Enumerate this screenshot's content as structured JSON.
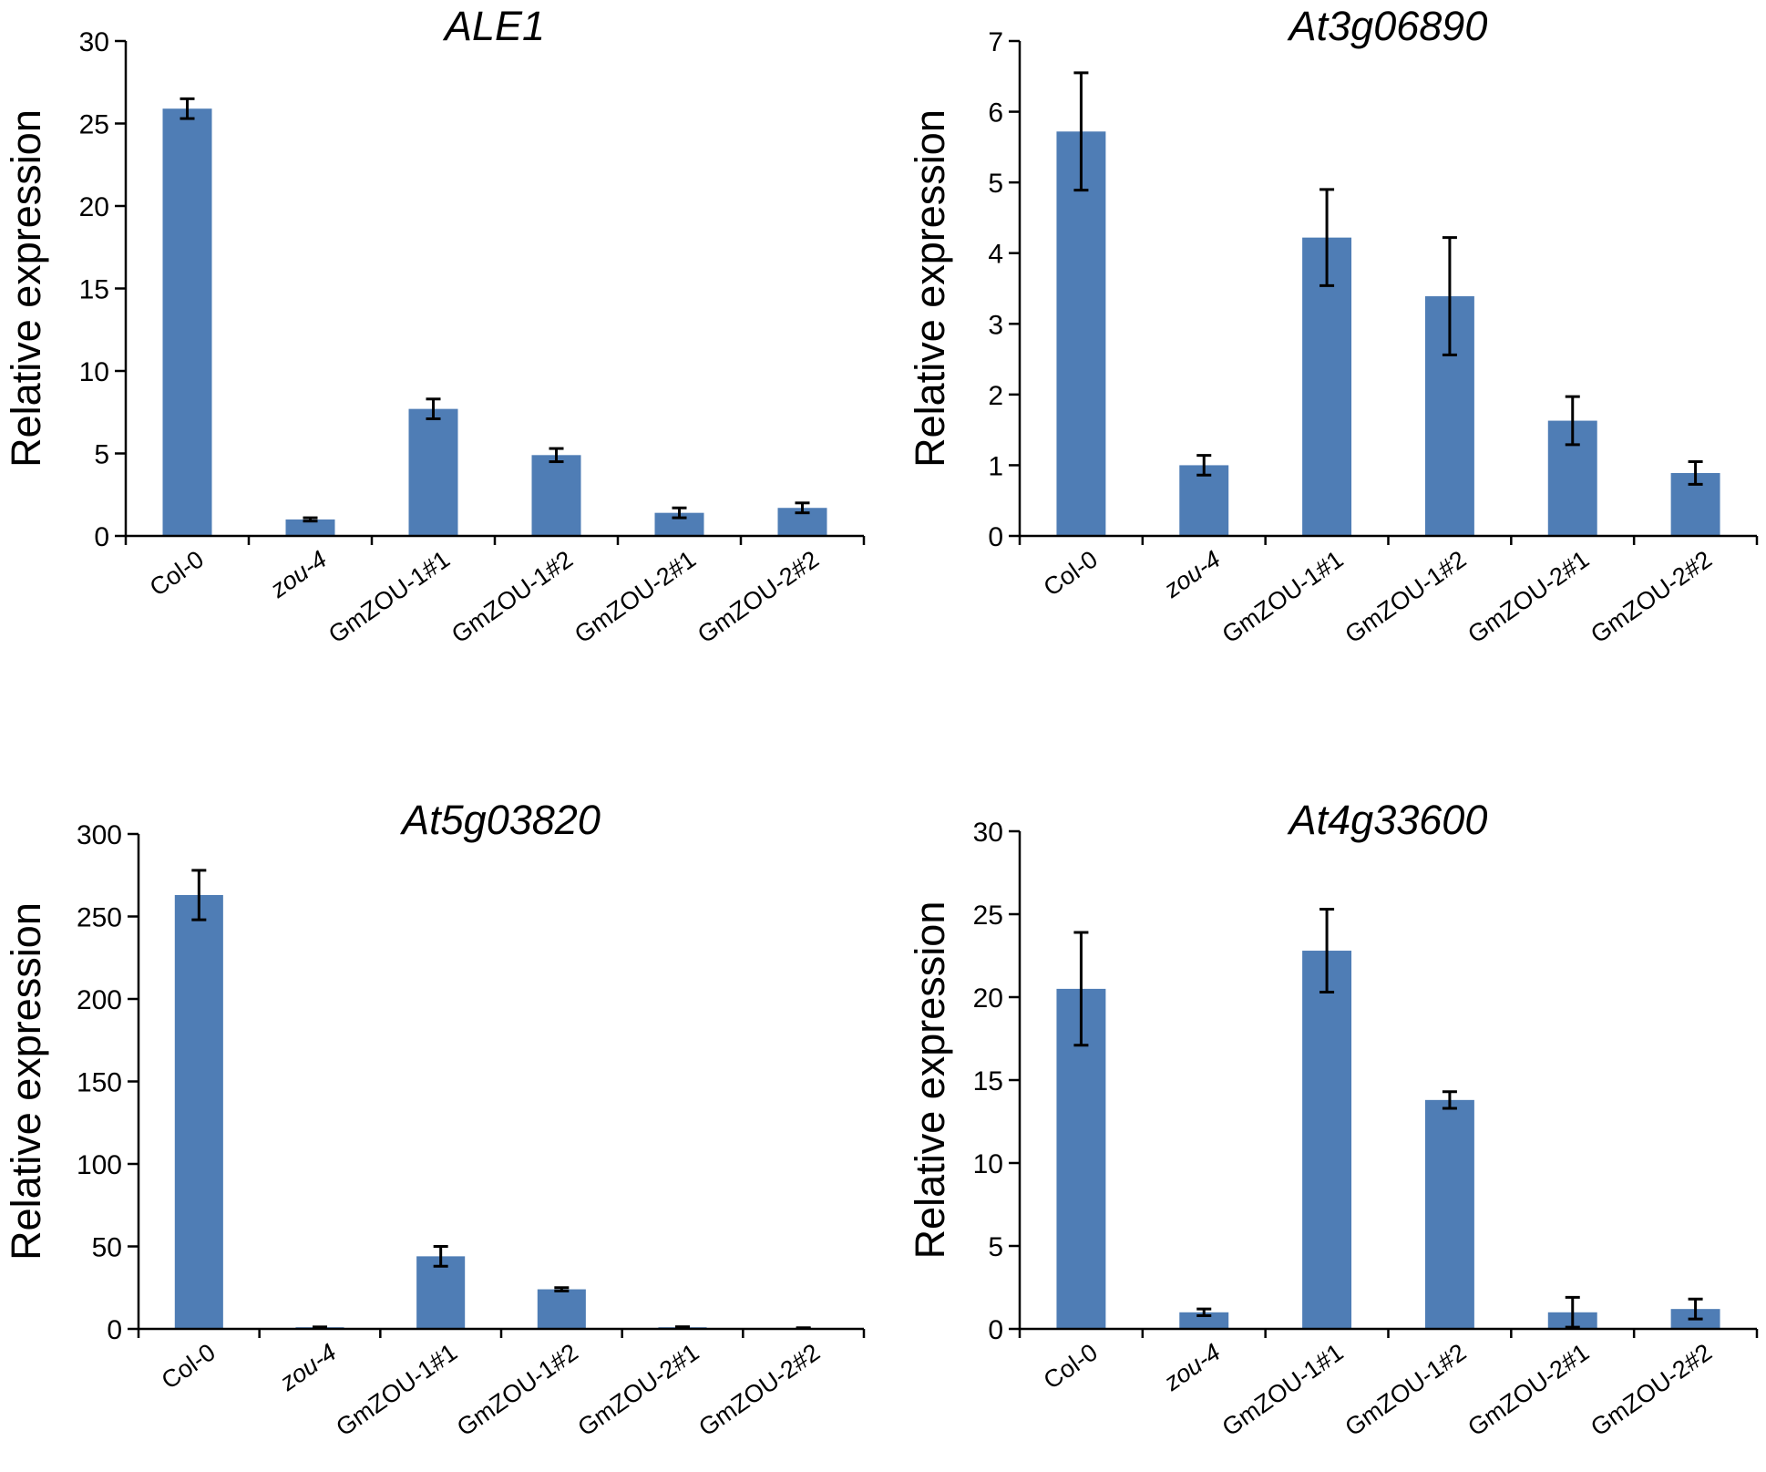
{
  "chart_data": [
    {
      "type": "bar",
      "title": "ALE1",
      "xlabel": "",
      "ylabel": "Relative expression",
      "categories": [
        "Col-0",
        "zou-4",
        "GmZOU-1#1",
        "GmZOU-1#2",
        "GmZOU-2#1",
        "GmZOU-2#2"
      ],
      "italic_categories": [
        "zou-4"
      ],
      "values": [
        25.9,
        1.0,
        7.7,
        4.9,
        1.4,
        1.7
      ],
      "errors": [
        0.6,
        0.1,
        0.6,
        0.4,
        0.3,
        0.3
      ],
      "ylim": [
        0,
        30
      ],
      "yticks": [
        0,
        5,
        10,
        15,
        20,
        25,
        30
      ],
      "color": "#4f7db5",
      "grid": false
    },
    {
      "type": "bar",
      "title": "At3g06890",
      "xlabel": "",
      "ylabel": "Relative expression",
      "categories": [
        "Col-0",
        "zou-4",
        "GmZOU-1#1",
        "GmZOU-1#2",
        "GmZOU-2#1",
        "GmZOU-2#2"
      ],
      "italic_categories": [
        "zou-4"
      ],
      "values": [
        5.72,
        1.0,
        4.22,
        3.39,
        1.63,
        0.89
      ],
      "errors": [
        0.83,
        0.14,
        0.68,
        0.83,
        0.34,
        0.16
      ],
      "ylim": [
        0,
        7
      ],
      "yticks": [
        0,
        1,
        2,
        3,
        4,
        5,
        6,
        7
      ],
      "color": "#4f7db5",
      "grid": false
    },
    {
      "type": "bar",
      "title": "At5g03820",
      "xlabel": "",
      "ylabel": "Relative expression",
      "categories": [
        "Col-0",
        "zou-4",
        "GmZOU-1#1",
        "GmZOU-1#2",
        "GmZOU-2#1",
        "GmZOU-2#2"
      ],
      "italic_categories": [
        "zou-4"
      ],
      "values": [
        263,
        1,
        44,
        24,
        1,
        0.5
      ],
      "errors": [
        15,
        0.2,
        6,
        1,
        0.3,
        0.2
      ],
      "ylim": [
        0,
        300
      ],
      "yticks": [
        0,
        50,
        100,
        150,
        200,
        250,
        300
      ],
      "color": "#4f7db5",
      "grid": false
    },
    {
      "type": "bar",
      "title": "At4g33600",
      "xlabel": "",
      "ylabel": "Relative expression",
      "categories": [
        "Col-0",
        "zou-4",
        "GmZOU-1#1",
        "GmZOU-1#2",
        "GmZOU-2#1",
        "GmZOU-2#2"
      ],
      "italic_categories": [
        "zou-4"
      ],
      "values": [
        20.5,
        1.0,
        22.8,
        13.8,
        1.0,
        1.2
      ],
      "errors": [
        3.4,
        0.2,
        2.5,
        0.5,
        0.9,
        0.6
      ],
      "ylim": [
        0,
        30
      ],
      "yticks": [
        0,
        5,
        10,
        15,
        20,
        25,
        30
      ],
      "color": "#4f7db5",
      "grid": false
    }
  ]
}
